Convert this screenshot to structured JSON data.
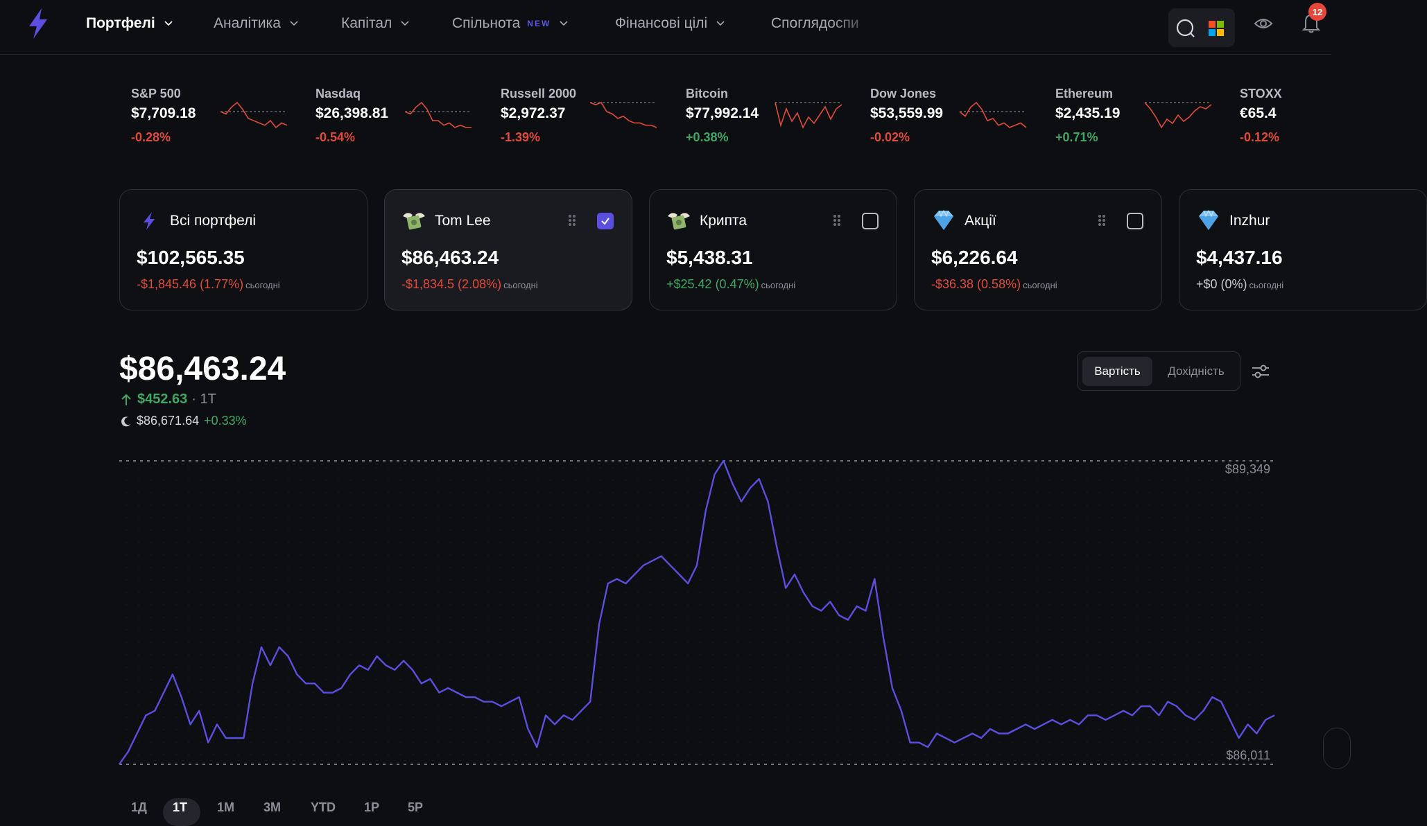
{
  "nav": {
    "items": [
      {
        "label": "Портфелі",
        "active": true,
        "dropdown": true,
        "icon": "chevron-down-icon"
      },
      {
        "label": "Аналітика",
        "active": false,
        "dropdown": true,
        "icon": "chevron-down-icon"
      },
      {
        "label": "Капітал",
        "active": false,
        "dropdown": true,
        "icon": "chevron-down-icon"
      },
      {
        "label": "Спільнота",
        "badge": "NEW",
        "active": false,
        "dropdown": true,
        "icon": "chevron-down-icon"
      },
      {
        "label": "Фінансові цілі",
        "active": false,
        "dropdown": true,
        "icon": "chevron-down-icon"
      },
      {
        "label": "Споглядоспи",
        "active": false,
        "dropdown": false
      }
    ],
    "icons": [
      "search-icon",
      "windows-logo-icon",
      "eye-icon",
      "bell-icon"
    ],
    "notifications": "12"
  },
  "tickers": [
    {
      "name": "S&P 500",
      "value": "$7,709.18",
      "change": "-0.28%",
      "direction": "down",
      "spark": [
        5,
        6,
        3,
        1,
        4,
        8,
        9,
        10,
        11,
        9,
        12,
        10,
        11
      ]
    },
    {
      "name": "Nasdaq",
      "value": "$26,398.81",
      "change": "-0.54%",
      "direction": "down",
      "spark": [
        5,
        6,
        3,
        1,
        4,
        9,
        9,
        11,
        10,
        12,
        11,
        12,
        12
      ]
    },
    {
      "name": "Russell 2000",
      "value": "$2,972.37",
      "change": "-1.39%",
      "direction": "down",
      "spark": [
        1,
        2,
        1,
        5,
        6,
        8,
        7,
        9,
        10,
        10,
        11,
        11,
        12
      ]
    },
    {
      "name": "Bitcoin",
      "value": "$77,992.14",
      "change": "+0.38%",
      "direction": "up",
      "spark": [
        3,
        14,
        6,
        12,
        8,
        15,
        10,
        13,
        9,
        5,
        11,
        6,
        4
      ]
    },
    {
      "name": "Dow Jones",
      "value": "$53,559.99",
      "change": "-0.02%",
      "direction": "down",
      "spark": [
        5,
        7,
        3,
        1,
        4,
        9,
        8,
        11,
        10,
        12,
        11,
        10,
        12
      ]
    },
    {
      "name": "Ethereum",
      "value": "$2,435.19",
      "change": "+0.71%",
      "direction": "up",
      "spark": [
        2,
        5,
        9,
        14,
        10,
        12,
        8,
        11,
        9,
        6,
        4,
        5,
        3
      ]
    },
    {
      "name": "STOXX",
      "value": "€65.4",
      "change": "-0.12%",
      "direction": "down",
      "spark": []
    }
  ],
  "portfolios": [
    {
      "name": "Всі портфелі",
      "value": "$102,565.35",
      "change": "-$1,845.46 (1.77%)",
      "today": "сьогодні",
      "direction": "down",
      "icon": "lightning-icon",
      "checkbox": false,
      "selected": false
    },
    {
      "name": "Tom Lee",
      "value": "$86,463.24",
      "change": "-$1,834.5 (2.08%)",
      "today": "сьогодні",
      "direction": "down",
      "icon": "money-wings-icon",
      "checkbox": true,
      "checked": true,
      "selected": true
    },
    {
      "name": "Крипта",
      "value": "$5,438.31",
      "change": "+$25.42 (0.47%)",
      "today": "сьогодні",
      "direction": "up",
      "icon": "money-wings-icon",
      "checkbox": true,
      "checked": false,
      "selected": false
    },
    {
      "name": "Акції",
      "value": "$6,226.64",
      "change": "-$36.38 (0.58%)",
      "today": "сьогодні",
      "direction": "down",
      "icon": "gem-icon",
      "checkbox": true,
      "checked": false,
      "selected": false
    },
    {
      "name": "Inzhur",
      "value": "$4,437.16",
      "change": "+$0 (0%)",
      "today": "сьогодні",
      "direction": "flat",
      "icon": "gem-icon",
      "checkbox": true,
      "checked": false,
      "selected": false
    }
  ],
  "summary": {
    "value": "$86,463.24",
    "change": "$452.63",
    "period": "· 1T",
    "after_hours_value": "$86,671.64",
    "after_hours_change": "+0.33%"
  },
  "view_toggle": {
    "options": [
      "Вартість",
      "Дохідність"
    ],
    "selected": "Вартість"
  },
  "chart_data": {
    "type": "line",
    "max_label": "$89,349",
    "min_label": "$86,011",
    "ylim": [
      86011,
      89349
    ],
    "color": "#5b4fe0",
    "values": [
      86011,
      86150,
      86350,
      86550,
      86600,
      86800,
      87000,
      86750,
      86450,
      86600,
      86250,
      86450,
      86300,
      86300,
      86300,
      86900,
      87300,
      87100,
      87300,
      87200,
      87000,
      86900,
      86900,
      86800,
      86800,
      86850,
      87000,
      87100,
      87050,
      87200,
      87100,
      87050,
      87150,
      87050,
      86900,
      86950,
      86800,
      86850,
      86800,
      86750,
      86750,
      86700,
      86700,
      86650,
      86700,
      86750,
      86400,
      86200,
      86550,
      86450,
      86550,
      86500,
      86600,
      86700,
      87550,
      88000,
      88050,
      88000,
      88100,
      88200,
      88250,
      88300,
      88200,
      88100,
      88000,
      88200,
      88800,
      89200,
      89349,
      89100,
      88900,
      89050,
      89150,
      88900,
      88400,
      87950,
      88100,
      87900,
      87750,
      87700,
      87800,
      87650,
      87600,
      87750,
      87700,
      88050,
      87400,
      86850,
      86600,
      86250,
      86250,
      86200,
      86350,
      86300,
      86250,
      86300,
      86350,
      86300,
      86400,
      86350,
      86350,
      86400,
      86450,
      86400,
      86450,
      86500,
      86450,
      86500,
      86450,
      86550,
      86550,
      86500,
      86550,
      86600,
      86550,
      86650,
      86650,
      86550,
      86700,
      86650,
      86550,
      86500,
      86600,
      86750,
      86700,
      86500,
      86300,
      86450,
      86350,
      86500,
      86550
    ]
  },
  "ranges": {
    "items": [
      "1Д",
      "1Т",
      "1М",
      "3М",
      "YTD",
      "1Р",
      "5Р"
    ],
    "selected": "1Т"
  }
}
